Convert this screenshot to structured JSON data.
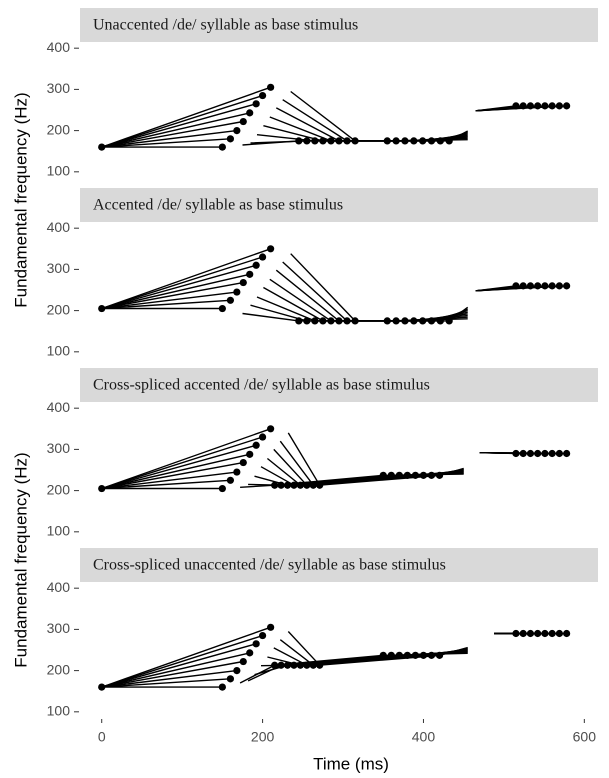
{
  "chart_data": [
    {
      "type": "line",
      "title": "Unaccented /de/ syllable as base stimulus",
      "color": "#000000",
      "y_label": "Fundamental frequency (Hz)",
      "xlim": [
        -27,
        617
      ],
      "ylim": [
        85,
        415
      ],
      "yticks": [
        100,
        200,
        300,
        400
      ],
      "series": [
        {
          "x": [
            0,
            150,
            null,
            175,
            245,
            355,
            455,
            null,
            465,
            515
          ],
          "values": [
            160,
            160,
            null,
            165,
            175,
            175,
            178,
            null,
            248,
            260
          ]
        },
        {
          "x": [
            0,
            160,
            null,
            185,
            255,
            366,
            455,
            null,
            465,
            524
          ],
          "values": [
            160,
            180,
            null,
            170,
            175,
            175,
            181,
            null,
            248,
            260
          ]
        },
        {
          "x": [
            0,
            168,
            null,
            193,
            265,
            377,
            455,
            null,
            465,
            533
          ],
          "values": [
            160,
            200,
            null,
            190,
            175,
            175,
            184,
            null,
            248,
            260
          ]
        },
        {
          "x": [
            0,
            176,
            null,
            201,
            275,
            388,
            455,
            null,
            465,
            542
          ],
          "values": [
            160,
            222,
            null,
            212,
            175,
            175,
            187,
            null,
            248,
            260
          ]
        },
        {
          "x": [
            0,
            184,
            null,
            209,
            285,
            399,
            455,
            null,
            465,
            551
          ],
          "values": [
            160,
            243,
            null,
            233,
            175,
            175,
            190,
            null,
            248,
            260
          ]
        },
        {
          "x": [
            0,
            192,
            null,
            217,
            295,
            410,
            455,
            null,
            465,
            560
          ],
          "values": [
            160,
            265,
            null,
            255,
            175,
            175,
            193,
            null,
            248,
            260
          ]
        },
        {
          "x": [
            0,
            200,
            null,
            225,
            305,
            421,
            455,
            null,
            465,
            569
          ],
          "values": [
            160,
            285,
            null,
            275,
            175,
            175,
            196,
            null,
            248,
            260
          ]
        },
        {
          "x": [
            0,
            210,
            null,
            235,
            315,
            432,
            455,
            null,
            465,
            578
          ],
          "values": [
            160,
            305,
            null,
            295,
            175,
            175,
            199,
            null,
            248,
            260
          ]
        }
      ],
      "points": {
        "x": [
          0,
          150,
          160,
          168,
          176,
          184,
          192,
          200,
          210,
          245,
          255,
          265,
          275,
          285,
          295,
          305,
          315,
          355,
          366,
          377,
          388,
          399,
          410,
          421,
          432,
          515,
          524,
          533,
          542,
          551,
          560,
          569,
          578
        ],
        "values": [
          160,
          160,
          180,
          200,
          222,
          243,
          265,
          285,
          305,
          175,
          175,
          175,
          175,
          175,
          175,
          175,
          175,
          175,
          175,
          175,
          175,
          175,
          175,
          175,
          175,
          260,
          260,
          260,
          260,
          260,
          260,
          260,
          260
        ]
      }
    },
    {
      "type": "line",
      "title": "Accented /de/ syllable as base stimulus",
      "color": "#000000",
      "xlim": [
        -27,
        617
      ],
      "ylim": [
        85,
        415
      ],
      "yticks": [
        100,
        200,
        300,
        400
      ],
      "series": [
        {
          "x": [
            0,
            150,
            null,
            175,
            245,
            355,
            455,
            null,
            465,
            515
          ],
          "values": [
            205,
            205,
            null,
            193,
            175,
            175,
            180,
            null,
            248,
            260
          ]
        },
        {
          "x": [
            0,
            160,
            null,
            185,
            255,
            366,
            455,
            null,
            465,
            524
          ],
          "values": [
            205,
            225,
            null,
            213,
            175,
            175,
            184,
            null,
            248,
            260
          ]
        },
        {
          "x": [
            0,
            168,
            null,
            193,
            265,
            377,
            455,
            null,
            465,
            533
          ],
          "values": [
            205,
            245,
            null,
            233,
            175,
            175,
            188,
            null,
            248,
            260
          ]
        },
        {
          "x": [
            0,
            176,
            null,
            201,
            275,
            388,
            455,
            null,
            465,
            542
          ],
          "values": [
            205,
            268,
            null,
            256,
            175,
            175,
            192,
            null,
            248,
            260
          ]
        },
        {
          "x": [
            0,
            184,
            null,
            209,
            285,
            399,
            455,
            null,
            465,
            551
          ],
          "values": [
            205,
            288,
            null,
            276,
            175,
            175,
            196,
            null,
            248,
            260
          ]
        },
        {
          "x": [
            0,
            192,
            null,
            217,
            295,
            410,
            455,
            null,
            465,
            560
          ],
          "values": [
            205,
            310,
            null,
            298,
            175,
            175,
            200,
            null,
            248,
            260
          ]
        },
        {
          "x": [
            0,
            200,
            null,
            225,
            305,
            421,
            455,
            null,
            465,
            569
          ],
          "values": [
            205,
            330,
            null,
            318,
            175,
            175,
            204,
            null,
            248,
            260
          ]
        },
        {
          "x": [
            0,
            210,
            null,
            235,
            315,
            432,
            455,
            null,
            465,
            578
          ],
          "values": [
            205,
            350,
            null,
            338,
            175,
            175,
            208,
            null,
            248,
            260
          ]
        }
      ],
      "points": {
        "x": [
          0,
          150,
          160,
          168,
          176,
          184,
          192,
          200,
          210,
          245,
          255,
          265,
          275,
          285,
          295,
          305,
          315,
          355,
          366,
          377,
          388,
          399,
          410,
          421,
          432,
          515,
          524,
          533,
          542,
          551,
          560,
          569,
          578
        ],
        "values": [
          205,
          205,
          225,
          245,
          268,
          288,
          310,
          330,
          350,
          175,
          175,
          175,
          175,
          175,
          175,
          175,
          175,
          175,
          175,
          175,
          175,
          175,
          175,
          175,
          175,
          260,
          260,
          260,
          260,
          260,
          260,
          260,
          260
        ]
      }
    },
    {
      "type": "line",
      "title": "Cross-spliced accented /de/ syllable as base stimulus",
      "color": "#000000",
      "y_label": "Fundamental frequency (Hz)",
      "xlim": [
        -27,
        617
      ],
      "ylim": [
        85,
        415
      ],
      "yticks": [
        100,
        200,
        300,
        400
      ],
      "series": [
        {
          "x": [
            0,
            150,
            null,
            172,
            215,
            350,
            450,
            null,
            470,
            515
          ],
          "values": [
            205,
            205,
            null,
            208,
            213,
            237,
            240,
            null,
            292,
            290
          ]
        },
        {
          "x": [
            0,
            160,
            null,
            182,
            223,
            360,
            450,
            null,
            470,
            524
          ],
          "values": [
            205,
            225,
            null,
            215,
            213,
            237,
            242,
            null,
            292,
            290
          ]
        },
        {
          "x": [
            0,
            168,
            null,
            190,
            231,
            370,
            450,
            null,
            470,
            533
          ],
          "values": [
            205,
            245,
            null,
            235,
            213,
            237,
            244,
            null,
            292,
            290
          ]
        },
        {
          "x": [
            0,
            176,
            null,
            198,
            239,
            380,
            450,
            null,
            470,
            542
          ],
          "values": [
            205,
            268,
            null,
            258,
            213,
            237,
            246,
            null,
            292,
            290
          ]
        },
        {
          "x": [
            0,
            184,
            null,
            206,
            247,
            390,
            450,
            null,
            470,
            551
          ],
          "values": [
            205,
            288,
            null,
            278,
            213,
            237,
            248,
            null,
            292,
            290
          ]
        },
        {
          "x": [
            0,
            192,
            null,
            214,
            255,
            400,
            450,
            null,
            470,
            560
          ],
          "values": [
            205,
            310,
            null,
            300,
            213,
            237,
            250,
            null,
            292,
            290
          ]
        },
        {
          "x": [
            0,
            200,
            null,
            222,
            263,
            410,
            450,
            null,
            470,
            569
          ],
          "values": [
            205,
            330,
            null,
            320,
            213,
            237,
            252,
            null,
            292,
            290
          ]
        },
        {
          "x": [
            0,
            210,
            null,
            232,
            271,
            420,
            450,
            null,
            470,
            578
          ],
          "values": [
            205,
            350,
            null,
            340,
            213,
            237,
            254,
            null,
            292,
            290
          ]
        }
      ],
      "points": {
        "x": [
          0,
          150,
          160,
          168,
          176,
          184,
          192,
          200,
          210,
          215,
          223,
          231,
          239,
          247,
          255,
          263,
          271,
          350,
          360,
          370,
          380,
          390,
          400,
          410,
          420,
          515,
          524,
          533,
          542,
          551,
          560,
          569,
          578
        ],
        "values": [
          205,
          205,
          225,
          245,
          268,
          288,
          310,
          330,
          350,
          213,
          213,
          213,
          213,
          213,
          213,
          213,
          213,
          237,
          237,
          237,
          237,
          237,
          237,
          237,
          237,
          290,
          290,
          290,
          290,
          290,
          290,
          290,
          290
        ]
      }
    },
    {
      "type": "line",
      "title": "Cross-spliced unaccented /de/ syllable as base stimulus",
      "color": "#000000",
      "x_label": "Time (ms)",
      "xlim": [
        -27,
        617
      ],
      "xticks": [
        0,
        200,
        400,
        600
      ],
      "ylim": [
        85,
        415
      ],
      "yticks": [
        100,
        200,
        300,
        400
      ],
      "series": [
        {
          "x": [
            0,
            150,
            null,
            172,
            215,
            350,
            455,
            null,
            488,
            515
          ],
          "values": [
            160,
            160,
            null,
            170,
            213,
            237,
            242,
            null,
            290,
            290
          ]
        },
        {
          "x": [
            0,
            160,
            null,
            182,
            223,
            360,
            455,
            null,
            488,
            524
          ],
          "values": [
            160,
            180,
            null,
            175,
            213,
            237,
            244,
            null,
            290,
            290
          ]
        },
        {
          "x": [
            0,
            168,
            null,
            190,
            231,
            370,
            455,
            null,
            488,
            533
          ],
          "values": [
            160,
            200,
            null,
            190,
            213,
            237,
            246,
            null,
            290,
            290
          ]
        },
        {
          "x": [
            0,
            176,
            null,
            198,
            239,
            380,
            455,
            null,
            488,
            542
          ],
          "values": [
            160,
            222,
            null,
            212,
            213,
            237,
            248,
            null,
            290,
            290
          ]
        },
        {
          "x": [
            0,
            184,
            null,
            206,
            247,
            390,
            455,
            null,
            488,
            551
          ],
          "values": [
            160,
            243,
            null,
            233,
            213,
            237,
            250,
            null,
            290,
            290
          ]
        },
        {
          "x": [
            0,
            192,
            null,
            214,
            255,
            400,
            455,
            null,
            488,
            560
          ],
          "values": [
            160,
            265,
            null,
            255,
            213,
            237,
            252,
            null,
            290,
            290
          ]
        },
        {
          "x": [
            0,
            200,
            null,
            222,
            263,
            410,
            455,
            null,
            488,
            569
          ],
          "values": [
            160,
            285,
            null,
            275,
            213,
            237,
            254,
            null,
            290,
            290
          ]
        },
        {
          "x": [
            0,
            210,
            null,
            232,
            271,
            420,
            455,
            null,
            488,
            578
          ],
          "values": [
            160,
            305,
            null,
            295,
            213,
            237,
            256,
            null,
            290,
            290
          ]
        }
      ],
      "points": {
        "x": [
          0,
          150,
          160,
          168,
          176,
          184,
          192,
          200,
          210,
          215,
          223,
          231,
          239,
          247,
          255,
          263,
          271,
          350,
          360,
          370,
          380,
          390,
          400,
          410,
          420,
          515,
          524,
          533,
          542,
          551,
          560,
          569,
          578
        ],
        "values": [
          160,
          160,
          180,
          200,
          222,
          243,
          265,
          285,
          305,
          213,
          213,
          213,
          213,
          213,
          213,
          213,
          213,
          237,
          237,
          237,
          237,
          237,
          237,
          237,
          237,
          290,
          290,
          290,
          290,
          290,
          290,
          290,
          290
        ]
      }
    }
  ]
}
